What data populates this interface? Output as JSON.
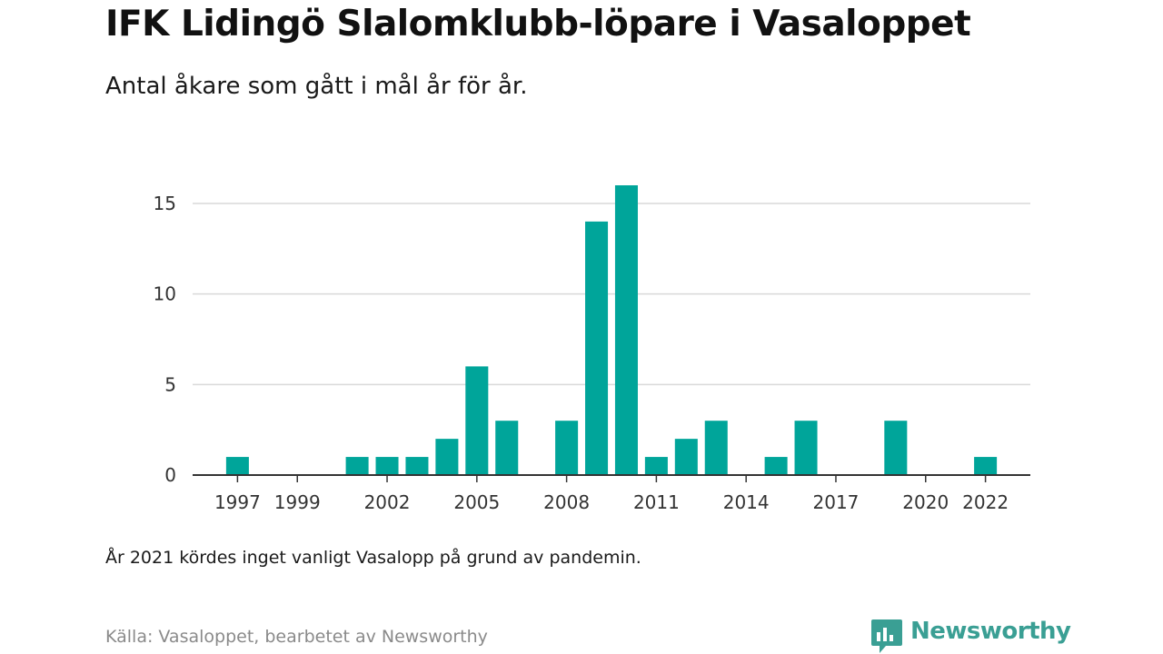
{
  "header": {
    "title": "IFK Lidingö Slalomklubb-löpare i Vasaloppet",
    "subtitle": "Antal åkare som gått i mål år för år."
  },
  "footer": {
    "note": "År 2021 kördes inget vanligt Vasalopp på grund av pandemin.",
    "source": "Källa: Vasaloppet, bearbetet av Newsworthy"
  },
  "brand": {
    "name": "Newsworthy",
    "icon": "newsworthy-logo-icon",
    "color": "#3a9f94"
  },
  "chart_data": {
    "type": "bar",
    "title": "IFK Lidingö Slalomklubb-löpare i Vasaloppet",
    "subtitle": "Antal åkare som gått i mål år för år.",
    "xlabel": "",
    "ylabel": "",
    "categories": [
      1996,
      1997,
      1998,
      1999,
      2000,
      2001,
      2002,
      2003,
      2004,
      2005,
      2006,
      2007,
      2008,
      2009,
      2010,
      2011,
      2012,
      2013,
      2014,
      2015,
      2016,
      2017,
      2018,
      2019,
      2020,
      2021,
      2022,
      2023
    ],
    "values": [
      0,
      1,
      0,
      0,
      0,
      1,
      1,
      1,
      2,
      6,
      3,
      0,
      3,
      14,
      16,
      1,
      2,
      3,
      0,
      1,
      3,
      0,
      0,
      3,
      0,
      0,
      1,
      0
    ],
    "x_tick_labels": [
      "1997",
      "1999",
      "2002",
      "2005",
      "2008",
      "2011",
      "2014",
      "2017",
      "2020",
      "2022"
    ],
    "y_ticks": [
      0,
      5,
      10,
      15
    ],
    "ylim": [
      0,
      16
    ],
    "grid": "horizontal",
    "legend": "none",
    "bar_color": "#00a59a"
  }
}
